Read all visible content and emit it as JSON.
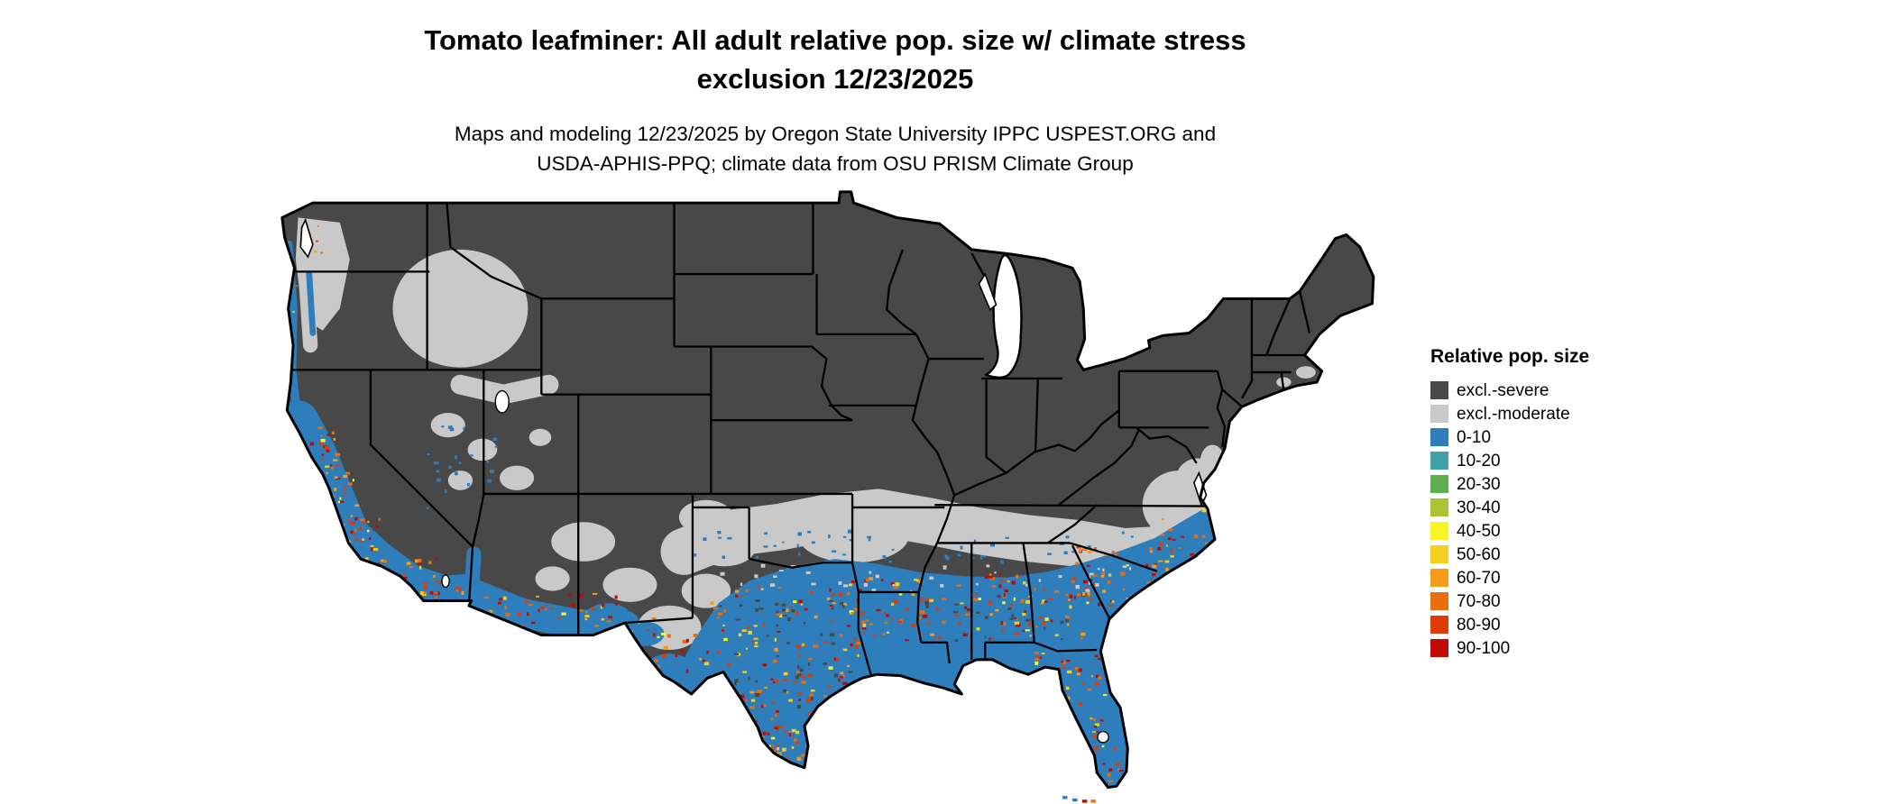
{
  "title": {
    "line1": "Tomato leafminer: All adult relative pop. size w/ climate stress",
    "line2": "exclusion 12/23/2025"
  },
  "subtitle": {
    "line1": "Maps and modeling 12/23/2025 by Oregon State University IPPC USPEST.ORG and",
    "line2": "USDA-APHIS-PPQ; climate data from OSU PRISM Climate Group"
  },
  "legend": {
    "title": "Relative pop. size",
    "items": [
      {
        "label": "excl.-severe",
        "color": "#484848"
      },
      {
        "label": "excl.-moderate",
        "color": "#c9c9c9"
      },
      {
        "label": "0-10",
        "color": "#2e7ebc"
      },
      {
        "label": "10-20",
        "color": "#3fa2a6"
      },
      {
        "label": "20-30",
        "color": "#5fad53"
      },
      {
        "label": "30-40",
        "color": "#a9c334"
      },
      {
        "label": "40-50",
        "color": "#f9f425"
      },
      {
        "label": "50-60",
        "color": "#f6ce1e"
      },
      {
        "label": "60-70",
        "color": "#f59d18"
      },
      {
        "label": "70-80",
        "color": "#ea6d0e"
      },
      {
        "label": "80-90",
        "color": "#dd3b08"
      },
      {
        "label": "90-100",
        "color": "#c00a02"
      }
    ]
  },
  "map": {
    "region": "Continental United States",
    "background": "#ffffff",
    "state_border_color": "#000000"
  }
}
